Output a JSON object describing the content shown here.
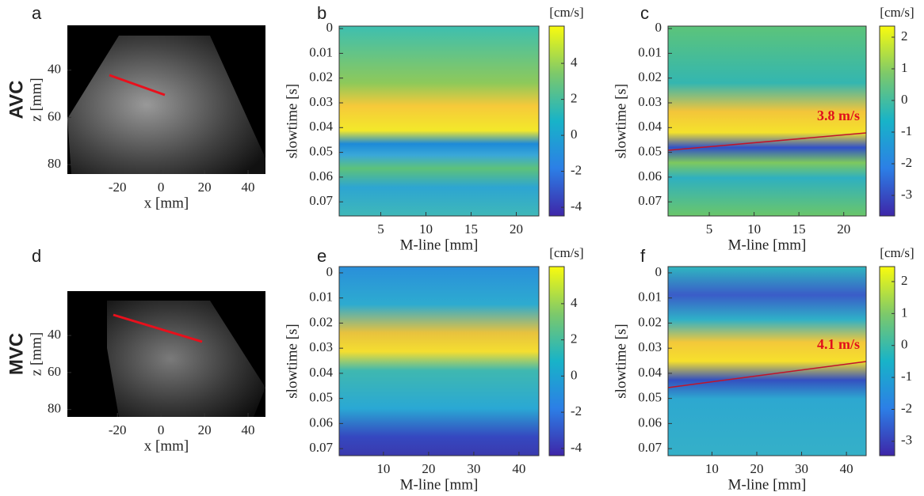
{
  "chart_data": [
    {
      "type": "image",
      "panel_label": "a",
      "row_label": "AVC",
      "xlabel": "x [mm]",
      "ylabel": "z [mm]",
      "xlim": [
        -43,
        48
      ],
      "ylim": [
        21,
        84
      ],
      "xticks": [
        -20,
        0,
        20,
        40
      ],
      "yticks": [
        40,
        60,
        80
      ]
    },
    {
      "type": "heatmap",
      "panel_label": "b",
      "xlabel": "M-line [mm]",
      "ylabel": "slowtime [s]",
      "xlim": [
        0.4,
        22.5
      ],
      "ylim": [
        -0.001,
        0.0757
      ],
      "xticks": [
        5,
        10,
        15,
        20
      ],
      "yticks": [
        0,
        0.01,
        0.02,
        0.03,
        0.04,
        0.05,
        0.06,
        0.07
      ],
      "colorbar": {
        "label": "[cm/s]",
        "lim": [
          -4.48,
          6.07
        ],
        "ticks": [
          -4,
          -2,
          0,
          2,
          4
        ]
      }
    },
    {
      "type": "heatmap",
      "panel_label": "c",
      "xlabel": "M-line [mm]",
      "ylabel": "slowtime [s]",
      "xlim": [
        0.4,
        22.5
      ],
      "ylim": [
        -0.001,
        0.0757
      ],
      "xticks": [
        5,
        10,
        15,
        20
      ],
      "yticks": [
        0,
        0.01,
        0.02,
        0.03,
        0.04,
        0.05,
        0.06,
        0.07
      ],
      "colorbar": {
        "label": "[cm/s]",
        "lim": [
          -3.65,
          2.35
        ],
        "ticks": [
          -3,
          -2,
          -1,
          0,
          1,
          2
        ]
      },
      "annotation": "3.8 m/s"
    },
    {
      "type": "image",
      "panel_label": "d",
      "row_label": "MVC",
      "xlabel": "x [mm]",
      "ylabel": "z [mm]",
      "xlim": [
        -43,
        48
      ],
      "ylim": [
        16,
        84
      ],
      "xticks": [
        -20,
        0,
        20,
        40
      ],
      "yticks": [
        40,
        60,
        80
      ]
    },
    {
      "type": "heatmap",
      "panel_label": "e",
      "xlabel": "M-line [mm]",
      "ylabel": "slowtime [s]",
      "xlim": [
        0.2,
        44.4
      ],
      "ylim": [
        -0.0025,
        0.0728
      ],
      "xticks": [
        10,
        20,
        30,
        40
      ],
      "yticks": [
        0,
        0.01,
        0.02,
        0.03,
        0.04,
        0.05,
        0.06,
        0.07
      ],
      "colorbar": {
        "label": "[cm/s]",
        "lim": [
          -4.4,
          6.05
        ],
        "ticks": [
          -4,
          -2,
          0,
          2,
          4
        ]
      }
    },
    {
      "type": "heatmap",
      "panel_label": "f",
      "xlabel": "M-line [mm]",
      "ylabel": "slowtime [s]",
      "xlim": [
        0.2,
        44.4
      ],
      "ylim": [
        -0.0025,
        0.0728
      ],
      "xticks": [
        10,
        20,
        30,
        40
      ],
      "yticks": [
        0,
        0.01,
        0.02,
        0.03,
        0.04,
        0.05,
        0.06,
        0.07
      ],
      "colorbar": {
        "label": "[cm/s]",
        "lim": [
          -3.45,
          2.47
        ],
        "ticks": [
          -3,
          -2,
          -1,
          0,
          1,
          2
        ]
      },
      "annotation": "4.1 m/s"
    }
  ]
}
